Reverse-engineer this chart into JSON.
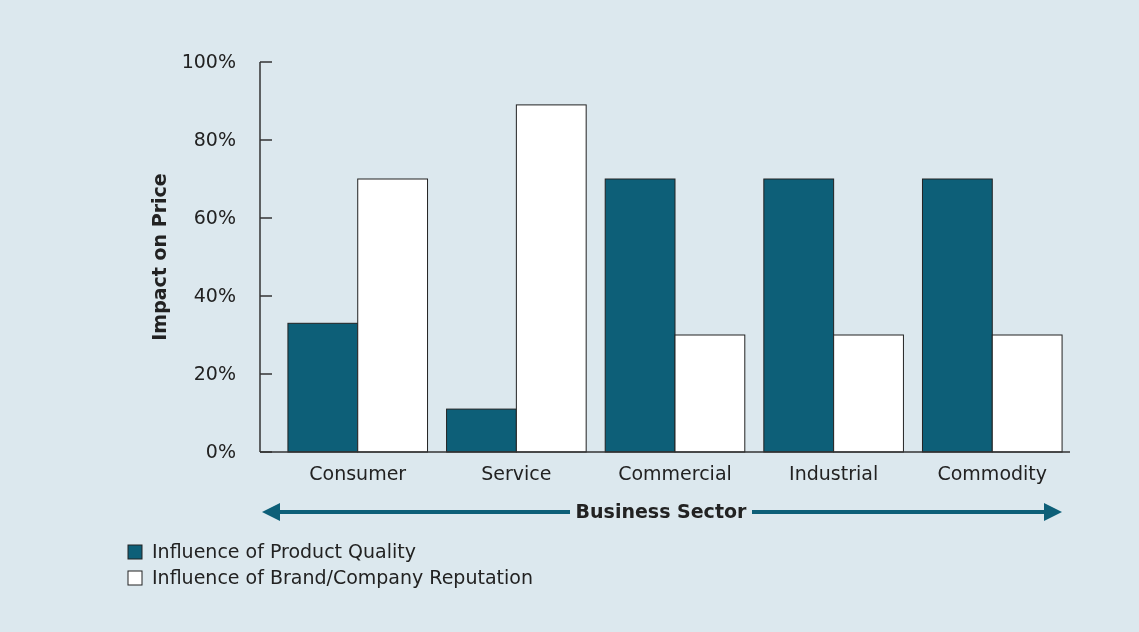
{
  "chart_data": {
    "type": "bar",
    "xlabel": "Business Sector",
    "ylabel": "Impact on Price",
    "categories": [
      "Consumer",
      "Service",
      "Commercial",
      "Industrial",
      "Commodity"
    ],
    "series": [
      {
        "name": "Influence of Product Quality",
        "color": "#0d5f78",
        "values": [
          33,
          11,
          70,
          70,
          70
        ]
      },
      {
        "name": "Influence of Brand/Company Reputation",
        "color": "#ffffff",
        "values": [
          70,
          89,
          30,
          30,
          30
        ]
      }
    ],
    "ylim": [
      0,
      100
    ],
    "yticks": [
      {
        "value": 0,
        "label": "0%"
      },
      {
        "value": 20,
        "label": "20%"
      },
      {
        "value": 40,
        "label": "40%"
      },
      {
        "value": 60,
        "label": "60%"
      },
      {
        "value": 80,
        "label": "80%"
      },
      {
        "value": 100,
        "label": "100%"
      }
    ],
    "grid": false,
    "legend": "bottom left"
  }
}
